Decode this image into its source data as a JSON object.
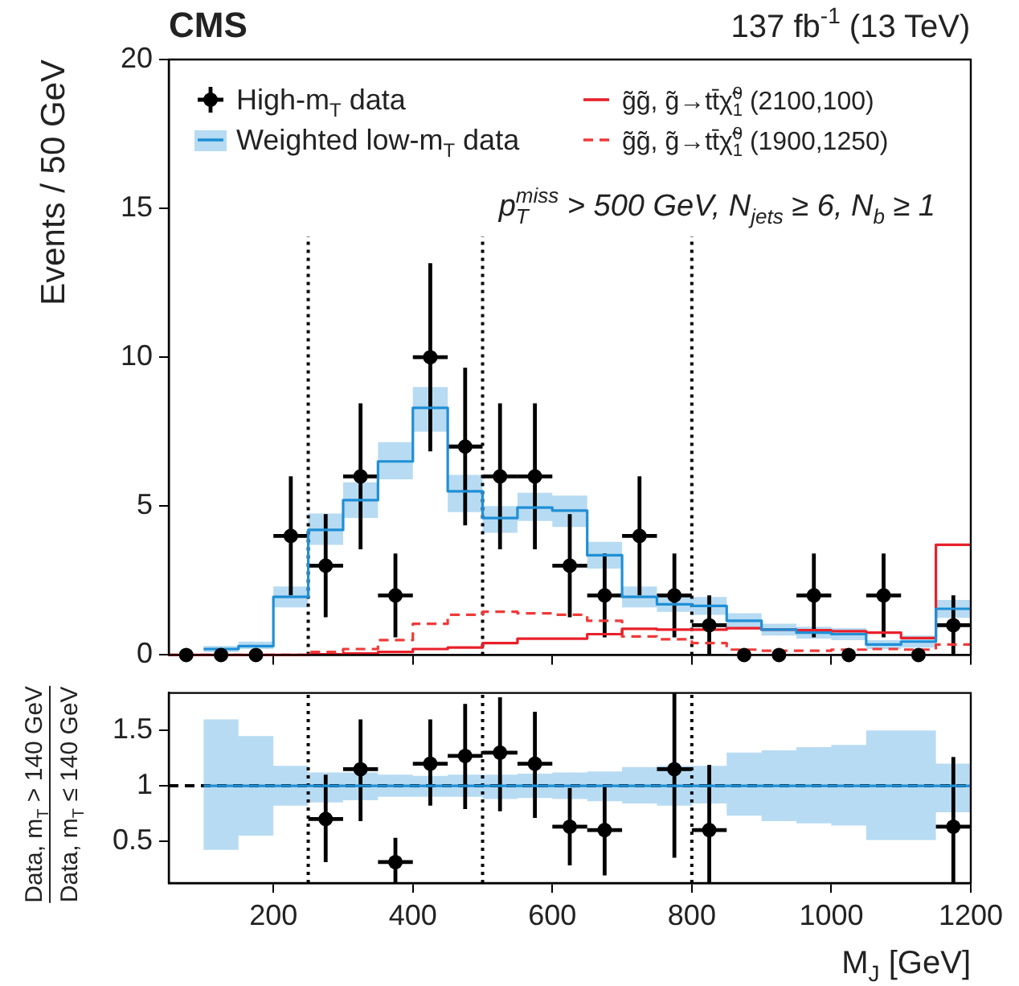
{
  "chart_data": [
    {
      "type": "histogram",
      "title": "CMS",
      "subtitle": "137 fb$^{-1}$ (13 TeV)",
      "ylabel": "Events / 50 GeV",
      "annotations": [
        "p$_{T}$$^{miss}$ > 500 GeV, N$_{jets}$ ≥ 6, N$_{b}$ ≥ 1"
      ],
      "bins": [
        50,
        100,
        150,
        200,
        250,
        300,
        350,
        400,
        450,
        500,
        550,
        600,
        650,
        700,
        750,
        800,
        850,
        900,
        950,
        1000,
        1050,
        1100,
        1150,
        1200
      ],
      "xlim": [
        50,
        1200
      ],
      "xticks": [
        200,
        400,
        600,
        800,
        1000,
        1200
      ],
      "ylim": [
        0,
        20
      ],
      "yticks": [
        0,
        5,
        10,
        15,
        20
      ],
      "tick_labels": "y",
      "legend": "top",
      "grid": false,
      "ref_lines": [
        {
          "axis": "x",
          "value": 250,
          "color": "#000000",
          "line_style": "dotted"
        },
        {
          "axis": "x",
          "value": 500,
          "color": "#000000",
          "line_style": "dotted"
        },
        {
          "axis": "x",
          "value": 800,
          "color": "#000000",
          "line_style": "dotted"
        }
      ],
      "series": [
        {
          "name": "High-m$_{T}$ data",
          "type": "scatter",
          "color": "#000000",
          "marker": "circle",
          "x": [
            75,
            125,
            175,
            225,
            275,
            325,
            375,
            425,
            475,
            525,
            575,
            625,
            675,
            725,
            775,
            825,
            875,
            925,
            975,
            1025,
            1075,
            1125,
            1175
          ],
          "values": [
            0,
            0,
            0,
            4,
            3,
            6,
            2,
            10,
            7,
            6,
            6,
            3,
            2,
            4,
            2,
            1,
            0,
            0,
            2,
            0,
            2,
            0,
            1
          ],
          "errors": [
            null,
            null,
            null,
            2,
            1.73,
            2.45,
            1.41,
            3.16,
            2.65,
            2.45,
            2.45,
            1.73,
            1.41,
            2,
            1.41,
            1,
            null,
            null,
            1.41,
            null,
            1.41,
            null,
            1
          ],
          "xerrors": [
            null,
            null,
            null,
            25,
            25,
            25,
            25,
            25,
            25,
            25,
            25,
            25,
            25,
            25,
            25,
            25,
            null,
            null,
            25,
            null,
            25,
            null,
            25
          ]
        },
        {
          "name": "Weighted low-m$_{T}$ data",
          "type": "step",
          "color": "#1f8fd6",
          "x": [
            100,
            125,
            175,
            225,
            275,
            325,
            375,
            425,
            475,
            525,
            575,
            625,
            675,
            725,
            775,
            825,
            875,
            925,
            975,
            1025,
            1075,
            1125,
            1175,
            1200
          ],
          "values": [
            0.2,
            0.2,
            0.3,
            1.95,
            4.2,
            5.2,
            6.5,
            8.3,
            5.5,
            4.6,
            4.95,
            4.85,
            3.35,
            1.95,
            1.7,
            1.65,
            1.15,
            0.85,
            0.75,
            0.7,
            0.35,
            0.45,
            1.55,
            1.55
          ],
          "lower": [
            0.1,
            0.1,
            0.2,
            1.6,
            3.7,
            4.6,
            5.9,
            7.5,
            4.8,
            4.1,
            4.5,
            4.3,
            2.9,
            1.6,
            1.45,
            1.35,
            0.9,
            0.65,
            0.55,
            0.5,
            0.2,
            0.25,
            1.25,
            1.25
          ],
          "upper": [
            0.3,
            0.3,
            0.45,
            2.3,
            4.75,
            5.8,
            7.15,
            9,
            6.05,
            5,
            5.45,
            5.35,
            3.8,
            2.3,
            1.95,
            1.95,
            1.4,
            1.05,
            0.95,
            0.9,
            0.5,
            0.65,
            1.85,
            1.85
          ]
        },
        {
          "name": "g̃g̃, g̃→tt̄χ̃$_{1}$$^{0}$ (2100,100)",
          "color": "#e8202a",
          "line_style": "solid",
          "values": [
            0,
            0,
            0,
            0,
            0.02,
            0.05,
            0.1,
            0.2,
            0.25,
            0.4,
            0.55,
            0.55,
            0.7,
            0.88,
            0.85,
            0.85,
            0.9,
            0.85,
            0.83,
            0.8,
            0.75,
            0.57,
            3.7
          ]
        },
        {
          "name": "g̃g̃, g̃→tt̄χ̃$_{1}$$^{0}$ (1900,1250)",
          "color": "#f03a3a",
          "line_style": "dashed",
          "values": [
            0,
            0,
            0,
            0,
            0.1,
            0.2,
            0.5,
            1.05,
            1.35,
            1.45,
            1.4,
            1.35,
            1.15,
            0.62,
            0.53,
            0.4,
            0.18,
            0.14,
            0.14,
            0.18,
            0.2,
            0.18,
            0.35
          ]
        }
      ]
    },
    {
      "type": "scatter",
      "xlabel": "M$_{J}$ [GeV]",
      "ylabel": "Data, m$_{T}$ > 140 GeV\nData, m$_{T}$ ≤ 140 GeV",
      "xlim": [
        50,
        1200
      ],
      "xticks": [
        200,
        400,
        600,
        800,
        1000,
        1200
      ],
      "ylim": [
        0.12,
        1.84
      ],
      "yticks": [
        0.5,
        1,
        1.5
      ],
      "grid": false,
      "ref_lines": [
        {
          "axis": "x",
          "value": 250,
          "color": "#000000",
          "line_style": "dotted"
        },
        {
          "axis": "x",
          "value": 500,
          "color": "#000000",
          "line_style": "dotted"
        },
        {
          "axis": "x",
          "value": 800,
          "color": "#000000",
          "line_style": "dotted"
        },
        {
          "axis": "y",
          "value": 1,
          "color": "#000000",
          "line_style": "dashed"
        }
      ],
      "series": [
        {
          "type": "step",
          "color": "#1f8fd6",
          "x": [
            100,
            125,
            175,
            225,
            275,
            325,
            375,
            425,
            475,
            525,
            575,
            625,
            675,
            725,
            775,
            825,
            875,
            925,
            975,
            1025,
            1075,
            1125,
            1175,
            1200
          ],
          "values": [
            1,
            1,
            1,
            1,
            1,
            1,
            1,
            1,
            1,
            1,
            1,
            1,
            1,
            1,
            1,
            1,
            1,
            1,
            1,
            1,
            1,
            1,
            1,
            1
          ],
          "lower": [
            0.42,
            0.42,
            0.55,
            0.82,
            0.85,
            0.87,
            0.9,
            0.9,
            0.9,
            0.88,
            0.89,
            0.88,
            0.86,
            0.84,
            0.82,
            0.84,
            0.73,
            0.68,
            0.66,
            0.64,
            0.51,
            0.51,
            0.76,
            0.76
          ],
          "upper": [
            1.6,
            1.6,
            1.45,
            1.18,
            1.12,
            1.12,
            1.1,
            1.09,
            1.1,
            1.1,
            1.11,
            1.12,
            1.13,
            1.17,
            1.18,
            1.18,
            1.3,
            1.32,
            1.35,
            1.37,
            1.5,
            1.5,
            1.2,
            1.2
          ]
        },
        {
          "color": "#000000",
          "marker": "circle",
          "x": [
            275,
            325,
            375,
            425,
            475,
            525,
            575,
            625,
            675,
            775,
            825,
            1175
          ],
          "values": [
            0.7,
            1.15,
            0.31,
            1.2,
            1.27,
            1.3,
            1.2,
            0.63,
            0.6,
            1.15,
            0.6,
            0.63
          ],
          "errors": [
            [
              0.31,
              1.1
            ],
            [
              0.68,
              1.6
            ],
            [
              0.12,
              0.53
            ],
            [
              0.82,
              1.6
            ],
            [
              0.79,
              1.74
            ],
            [
              0.77,
              1.8
            ],
            [
              0.71,
              1.67
            ],
            [
              0.28,
              0.98
            ],
            [
              0.19,
              1.0
            ],
            [
              0.35,
              1.84
            ],
            [
              0.12,
              1.19
            ],
            [
              0.12,
              1.26
            ]
          ],
          "xerrors": [
            25,
            25,
            25,
            25,
            25,
            25,
            25,
            25,
            25,
            25,
            25,
            25
          ]
        }
      ]
    }
  ]
}
